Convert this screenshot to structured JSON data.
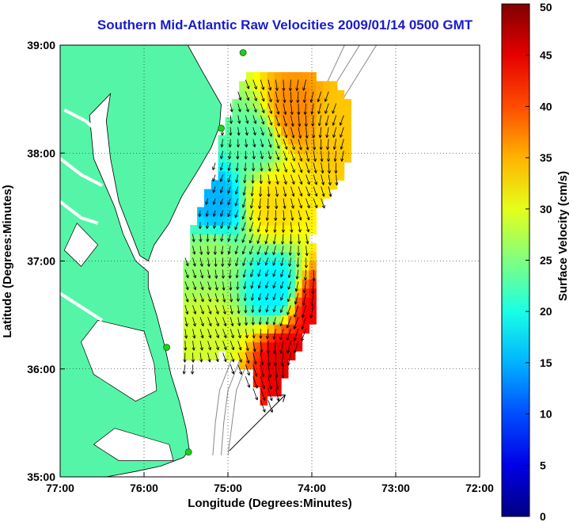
{
  "chart_data": {
    "type": "map",
    "title": "Southern Mid-Atlantic Raw Velocities 2009/01/14 0500 GMT",
    "xlabel": "Longitude (Degrees:Minutes)",
    "ylabel": "Latitude (Degrees:Minutes)",
    "xlim": [
      -77,
      -72
    ],
    "ylim": [
      35,
      39
    ],
    "xticks": [
      {
        "value": -77,
        "label": "77:00"
      },
      {
        "value": -76,
        "label": "76:00"
      },
      {
        "value": -75,
        "label": "75:00"
      },
      {
        "value": -74,
        "label": "74:00"
      },
      {
        "value": -73,
        "label": "73:00"
      },
      {
        "value": -72,
        "label": "72:00"
      }
    ],
    "yticks": [
      {
        "value": 35,
        "label": "35:00"
      },
      {
        "value": 36,
        "label": "36:00"
      },
      {
        "value": 37,
        "label": "37:00"
      },
      {
        "value": 38,
        "label": "38:00"
      },
      {
        "value": 39,
        "label": "39:00"
      }
    ],
    "grid": true,
    "colorbar": {
      "label": "Surface Velocity (cm/s)",
      "range": [
        0,
        50
      ],
      "ticks": [
        0,
        5,
        10,
        15,
        20,
        25,
        30,
        35,
        40,
        45,
        50
      ],
      "colormap": "jet"
    },
    "stations": [
      {
        "lon": -74.82,
        "lat": 38.93
      },
      {
        "lon": -75.08,
        "lat": 38.23
      },
      {
        "lon": -75.73,
        "lat": 36.2
      },
      {
        "lon": -75.47,
        "lat": 35.23
      }
    ],
    "speed_field_samples": [
      {
        "lon": -74.25,
        "lat": 38.35,
        "speed": 37
      },
      {
        "lon": -73.75,
        "lat": 38.25,
        "speed": 34
      },
      {
        "lon": -74.75,
        "lat": 38.05,
        "speed": 23
      },
      {
        "lon": -75.2,
        "lat": 37.5,
        "speed": 15
      },
      {
        "lon": -74.5,
        "lat": 37.5,
        "speed": 33
      },
      {
        "lon": -75.25,
        "lat": 37.0,
        "speed": 26
      },
      {
        "lon": -74.5,
        "lat": 36.7,
        "speed": 18
      },
      {
        "lon": -74.0,
        "lat": 36.5,
        "speed": 44
      },
      {
        "lon": -74.35,
        "lat": 36.05,
        "speed": 45
      },
      {
        "lon": -75.25,
        "lat": 36.3,
        "speed": 29
      }
    ],
    "scale_arrow": {
      "lon": -74.65,
      "lat": 35.5,
      "speed": 50
    }
  },
  "colors": {
    "land": "#55f5a8",
    "water": "#ffffff",
    "title": "#1a1acc",
    "bathymetry": "#888888",
    "station": "#22cc22"
  }
}
